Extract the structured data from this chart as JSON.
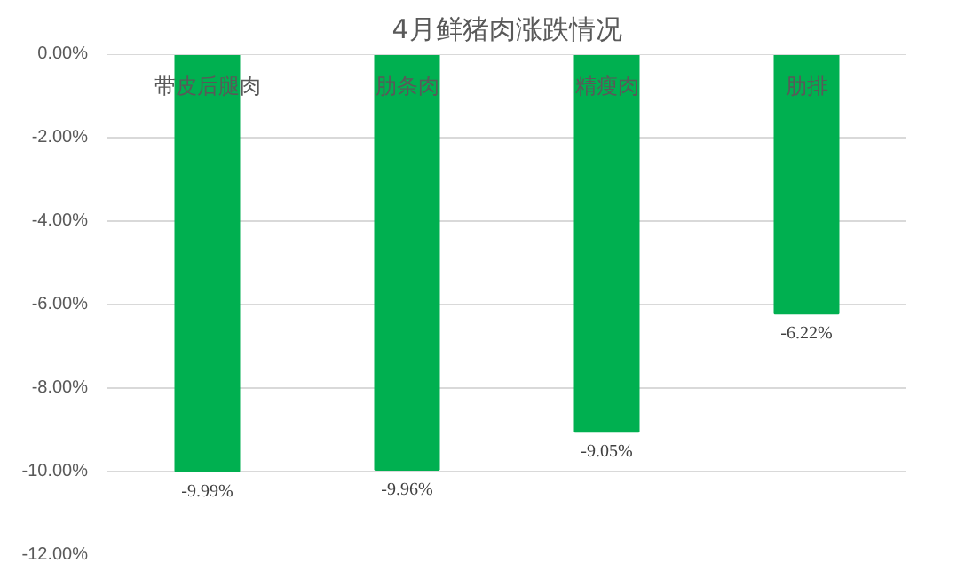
{
  "chart_data": {
    "type": "bar",
    "title": "4月鲜猪肉涨跌情况",
    "categories": [
      "带皮后腿肉",
      "肋条肉",
      "精瘦肉",
      "肋排"
    ],
    "values": [
      -9.99,
      -9.96,
      -9.05,
      -6.22
    ],
    "value_labels": [
      "-9.99%",
      "-9.96%",
      "-9.05%",
      "-6.22%"
    ],
    "color": "#00b050",
    "ylim": [
      -12,
      0
    ],
    "yticks": [
      {
        "value": -12,
        "label": "-12.00%"
      },
      {
        "value": -10,
        "label": "-10.00%"
      },
      {
        "value": -8,
        "label": "-8.00%"
      },
      {
        "value": -6,
        "label": "-6.00%"
      },
      {
        "value": -4,
        "label": "-4.00%"
      },
      {
        "value": -2,
        "label": "-2.00%"
      },
      {
        "value": 0,
        "label": "0.00%"
      }
    ],
    "grid": "y"
  }
}
